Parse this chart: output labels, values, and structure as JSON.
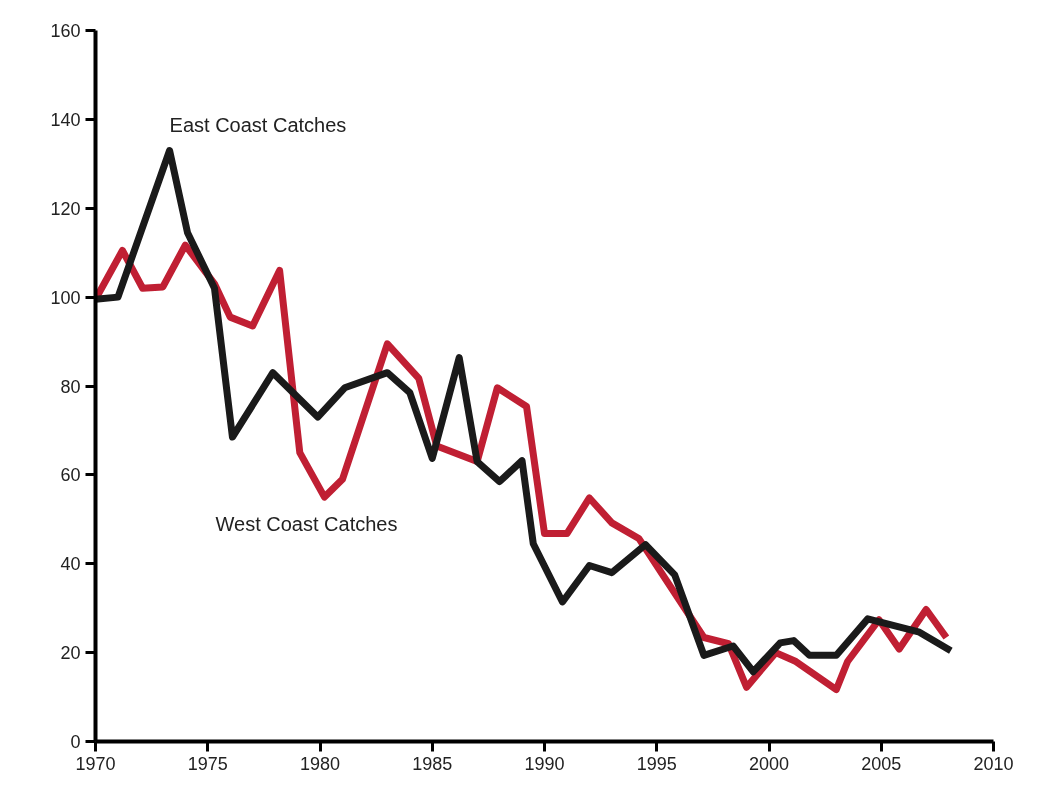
{
  "chart_data": {
    "type": "line",
    "xlim": [
      1970,
      2010
    ],
    "ylim": [
      0,
      160
    ],
    "xticks": [
      1970,
      1975,
      1980,
      1985,
      1990,
      1995,
      2000,
      2005,
      2010
    ],
    "yticks": [
      0,
      20,
      40,
      60,
      80,
      100,
      120,
      140,
      160
    ],
    "grid": false,
    "legend": false,
    "marker": "none",
    "line_style": "solid",
    "series": [
      {
        "name": "West Coast Catches",
        "color": "#c01f33",
        "x": [
          1970,
          1971.2,
          1972.1,
          1973,
          1974,
          1975.3,
          1976,
          1977,
          1978.2,
          1979.1,
          1980.2,
          1981,
          1983,
          1984.4,
          1985.2,
          1987,
          1987.9,
          1989.2,
          1990,
          1991,
          1992,
          1993,
          1994.2,
          1997.1,
          1998.2,
          1999,
          2000.3,
          2001.2,
          2003,
          2003.5,
          2004.9,
          2005.8,
          2007,
          2007.9
        ],
        "values": [
          99.5,
          110.5,
          102,
          102.3,
          111.7,
          103,
          95.5,
          93.5,
          106,
          65,
          55,
          59,
          89.5,
          81.7,
          66.5,
          63,
          79.6,
          75.4,
          46.8,
          46.8,
          54.8,
          49.2,
          45.7,
          23.4,
          22,
          12.2,
          20,
          18,
          11.7,
          18,
          27.4,
          20.8,
          29.7,
          23.4
        ]
      },
      {
        "name": "East Coast Catches",
        "color": "#1a1a1a",
        "x": [
          1970,
          1971,
          1973.3,
          1974.1,
          1975.3,
          1976.1,
          1977.9,
          1979.9,
          1981.1,
          1983,
          1984,
          1985,
          1986.2,
          1987,
          1988,
          1989,
          1989.5,
          1990.8,
          1992,
          1993,
          1994.5,
          1995.8,
          1997.1,
          1998.4,
          1999.3,
          2000.5,
          2001.1,
          2001.8,
          2003,
          2004.4,
          2006.7,
          2008.1
        ],
        "values": [
          99.5,
          100,
          133,
          114.5,
          102,
          68.5,
          83,
          73,
          79.6,
          83,
          78.5,
          63.7,
          86.4,
          63,
          58.5,
          63.2,
          44.5,
          31.4,
          39.6,
          38,
          44.3,
          37.5,
          19.4,
          21.5,
          15.7,
          22.2,
          22.7,
          19.4,
          19.4,
          27.6,
          24.6,
          20.4
        ]
      }
    ]
  }
}
